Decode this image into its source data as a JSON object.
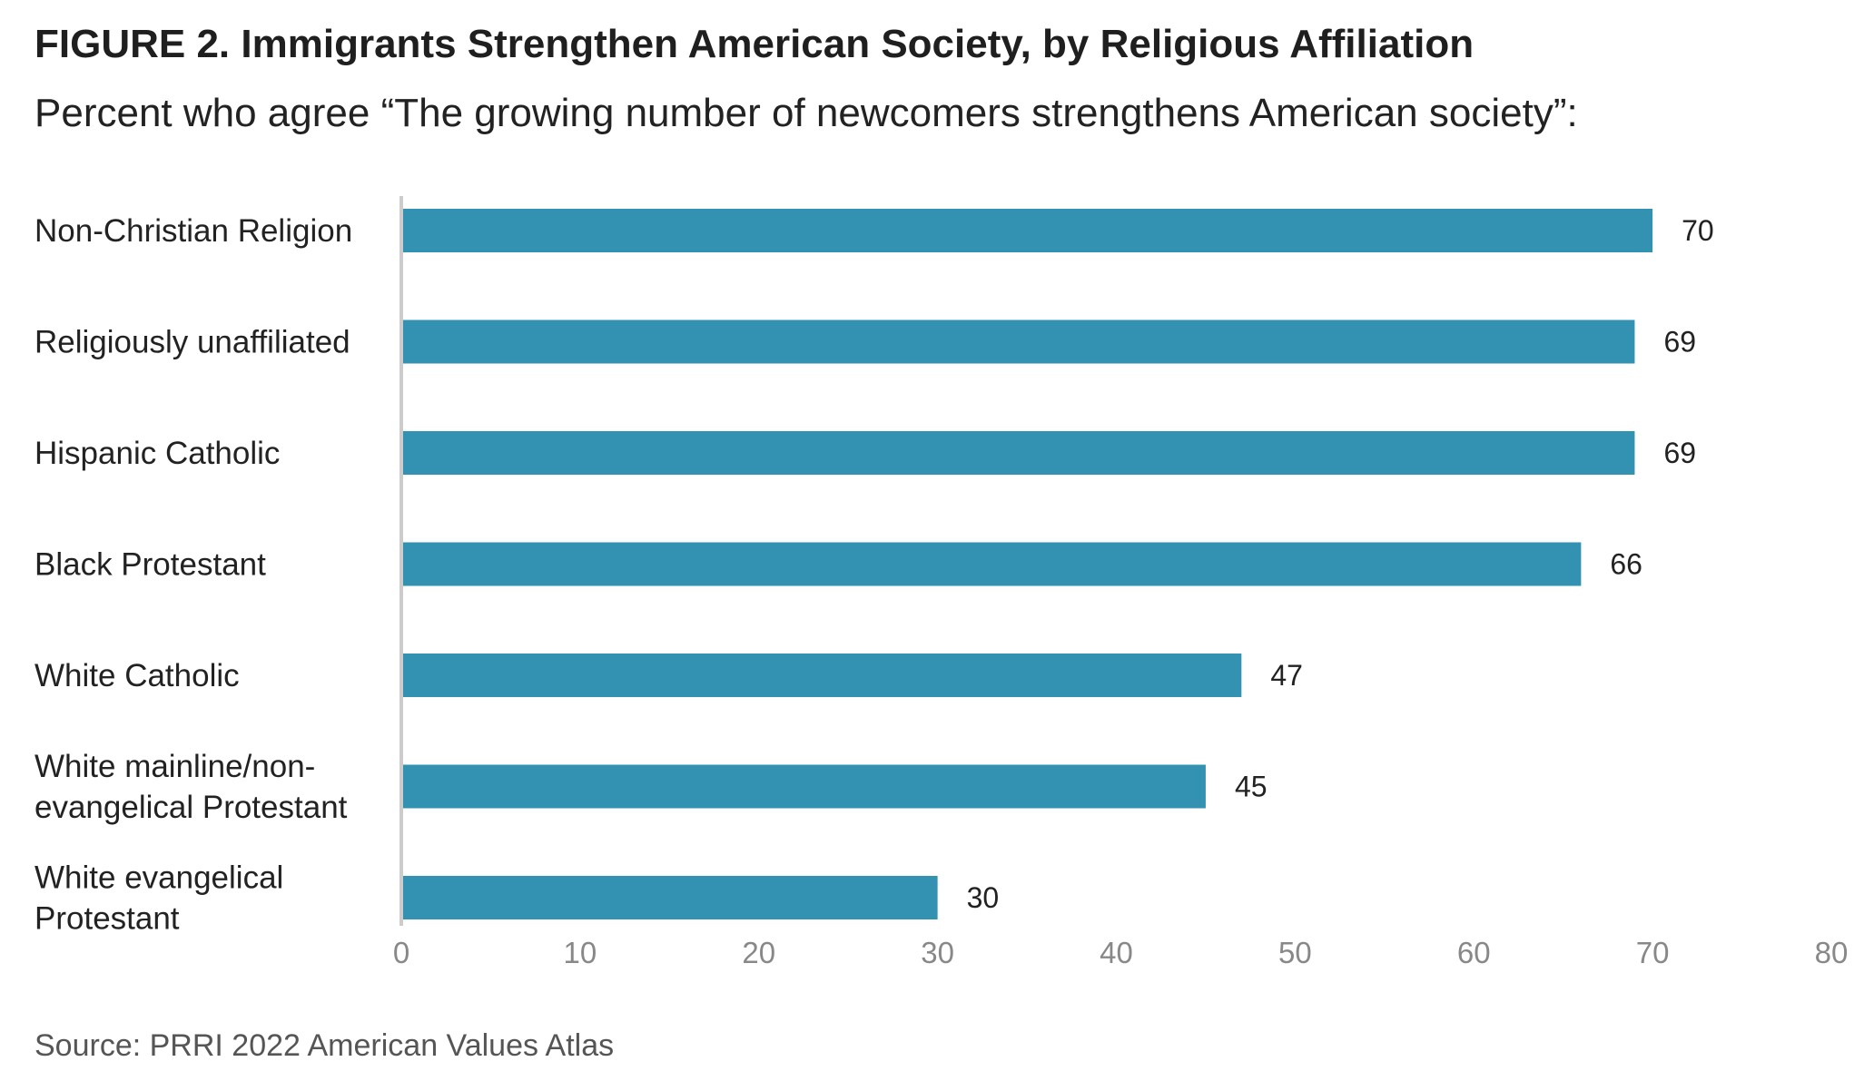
{
  "figure": {
    "title": "FIGURE 2.  Immigrants Strengthen American Society, by Religious Affiliation",
    "subtitle": "Percent who agree “The growing number of newcomers strengthens American society”:",
    "source": "Source: PRRI 2022 American Values Atlas"
  },
  "chart_data": {
    "type": "bar",
    "orientation": "horizontal",
    "categories": [
      [
        "Non-Christian Religion"
      ],
      [
        "Religiously unaffiliated"
      ],
      [
        "Hispanic Catholic"
      ],
      [
        "Black Protestant"
      ],
      [
        "White Catholic"
      ],
      [
        "White mainline/non-",
        "evangelical Protestant"
      ],
      [
        "White evangelical",
        "Protestant"
      ]
    ],
    "values": [
      70,
      69,
      69,
      66,
      47,
      45,
      30
    ],
    "value_labels": [
      "70",
      "69",
      "69",
      "66",
      "47",
      "45",
      "30"
    ],
    "xlim": [
      0,
      80
    ],
    "x_ticks": [
      0,
      10,
      20,
      30,
      40,
      50,
      60,
      70,
      80
    ],
    "bar_color": "#3392b2",
    "axis_color": "#cccccc",
    "tick_label_color": "#888888",
    "grid": false,
    "legend": "none"
  }
}
